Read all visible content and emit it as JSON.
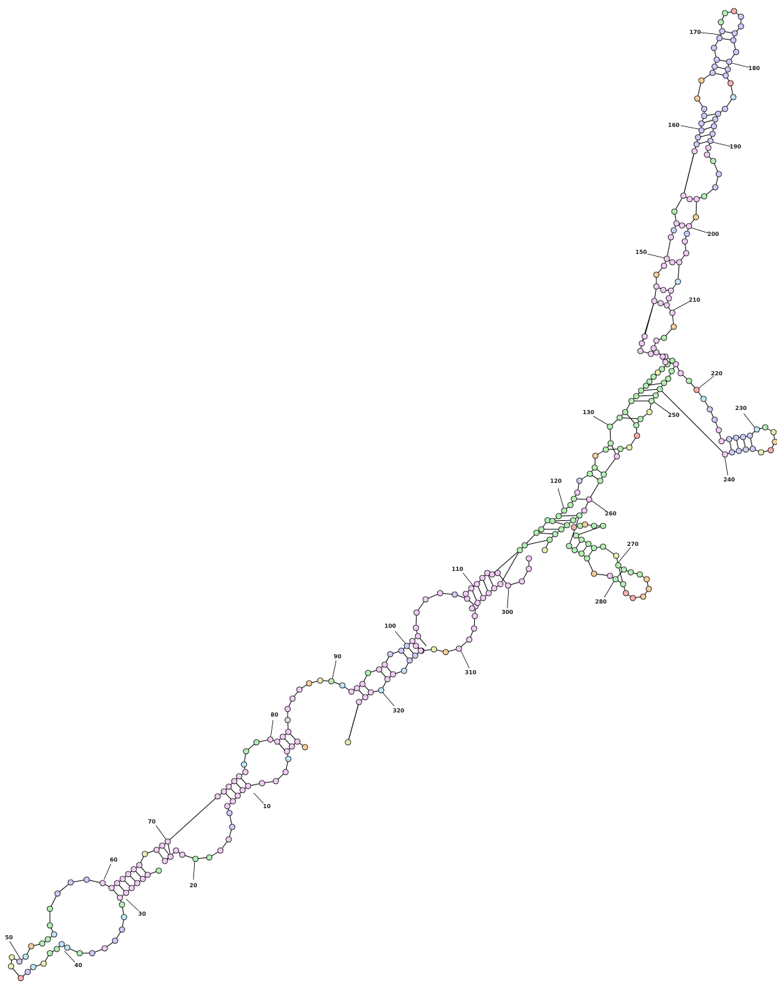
{
  "diagram": {
    "type": "rna-secondary-structure",
    "colors": {
      "pink": "#f1ccf5",
      "green": "#b4efb4",
      "blue": "#ccccfa",
      "cyan": "#bfe6fa",
      "orange": "#f7cf9c",
      "yellow": "#eeeeb0",
      "red": "#f7b1b1"
    },
    "position_labels": [
      {
        "text": "10"
      },
      {
        "text": "20"
      },
      {
        "text": "30"
      },
      {
        "text": "40"
      },
      {
        "text": "50"
      },
      {
        "text": "60"
      },
      {
        "text": "70"
      },
      {
        "text": "80"
      },
      {
        "text": "90"
      },
      {
        "text": "100"
      },
      {
        "text": "110"
      },
      {
        "text": "120"
      },
      {
        "text": "130"
      },
      {
        "text": "150"
      },
      {
        "text": "160"
      },
      {
        "text": "170"
      },
      {
        "text": "180"
      },
      {
        "text": "190"
      },
      {
        "text": "200"
      },
      {
        "text": "210"
      },
      {
        "text": "220"
      },
      {
        "text": "230"
      },
      {
        "text": "240"
      },
      {
        "text": "250"
      },
      {
        "text": "260"
      },
      {
        "text": "270"
      },
      {
        "text": "280"
      },
      {
        "text": "300"
      },
      {
        "text": "310"
      },
      {
        "text": "320"
      }
    ]
  }
}
